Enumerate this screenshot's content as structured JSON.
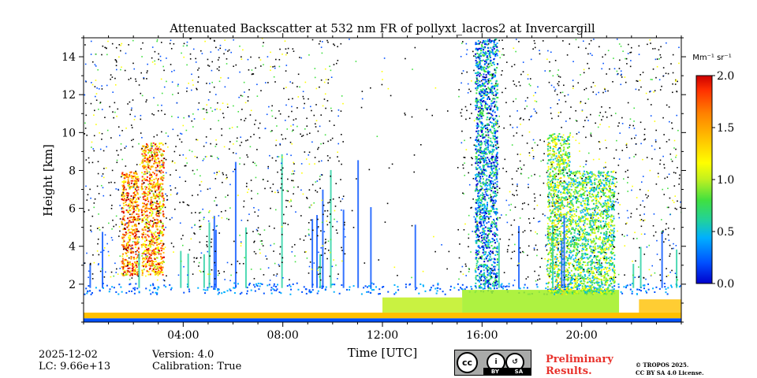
{
  "chart_data": {
    "type": "heatmap",
    "title": "Attenuated Backscatter at 532 nm FR of pollyxt_lacros2 at Invercargill",
    "xlabel": "Time [UTC]",
    "ylabel": "Height [km]",
    "xlim": [
      0,
      24
    ],
    "ylim": [
      0,
      15
    ],
    "x_ticks": [
      4,
      8,
      12,
      16,
      20
    ],
    "x_tick_labels": [
      "04:00",
      "08:00",
      "12:00",
      "16:00",
      "20:00"
    ],
    "y_ticks": [
      2,
      4,
      6,
      8,
      10,
      12,
      14
    ],
    "y_tick_labels": [
      "2",
      "4",
      "6",
      "8",
      "10",
      "12",
      "14"
    ],
    "colorbar": {
      "unit": "Mm⁻¹ sr⁻¹",
      "min": 0.0,
      "max": 2.0,
      "ticks": [
        0.0,
        0.5,
        1.0,
        1.5,
        2.0
      ],
      "tick_labels": [
        "0.0",
        "0.5",
        "1.0",
        "1.5",
        "2.0"
      ],
      "colors": [
        "#0000cc",
        "#0050ff",
        "#00b0ff",
        "#20d0a0",
        "#40e040",
        "#a0f020",
        "#ffff00",
        "#ffc000",
        "#ff8000",
        "#ff3000",
        "#cc0000"
      ]
    },
    "approx_features": {
      "clouds": [
        {
          "t_start": 1.5,
          "t_end": 2.2,
          "h_bottom": 2.5,
          "h_top": 8.0,
          "intensity": 1.6
        },
        {
          "t_start": 2.3,
          "t_end": 3.2,
          "h_bottom": 2.5,
          "h_top": 9.5,
          "intensity": 1.5
        },
        {
          "t_start": 15.7,
          "t_end": 16.6,
          "h_bottom": 1.8,
          "h_top": 15.0,
          "intensity": 0.4
        },
        {
          "t_start": 18.6,
          "t_end": 19.5,
          "h_bottom": 1.5,
          "h_top": 10.0,
          "intensity": 0.9
        },
        {
          "t_start": 19.5,
          "t_end": 21.3,
          "h_bottom": 1.5,
          "h_top": 8.0,
          "intensity": 0.8
        }
      ],
      "near_surface_layer_km": [
        0.2,
        0.5
      ],
      "boundary_layer_top_km": 1.8
    }
  },
  "footer": {
    "date": "2025-12-02",
    "lc": "LC: 9.66e+13",
    "version": "Version: 4.0",
    "calibration": "Calibration: True",
    "license_badge": "cc BY SA",
    "license_badge_parts": [
      "cc",
      "i",
      "↺",
      "BY",
      "SA"
    ],
    "preliminary_line1": "Preliminary",
    "preliminary_line2": "Results.",
    "copyright_line1": "© TROPOS 2025.",
    "copyright_line2": "CC BY SA 4.0 License."
  }
}
